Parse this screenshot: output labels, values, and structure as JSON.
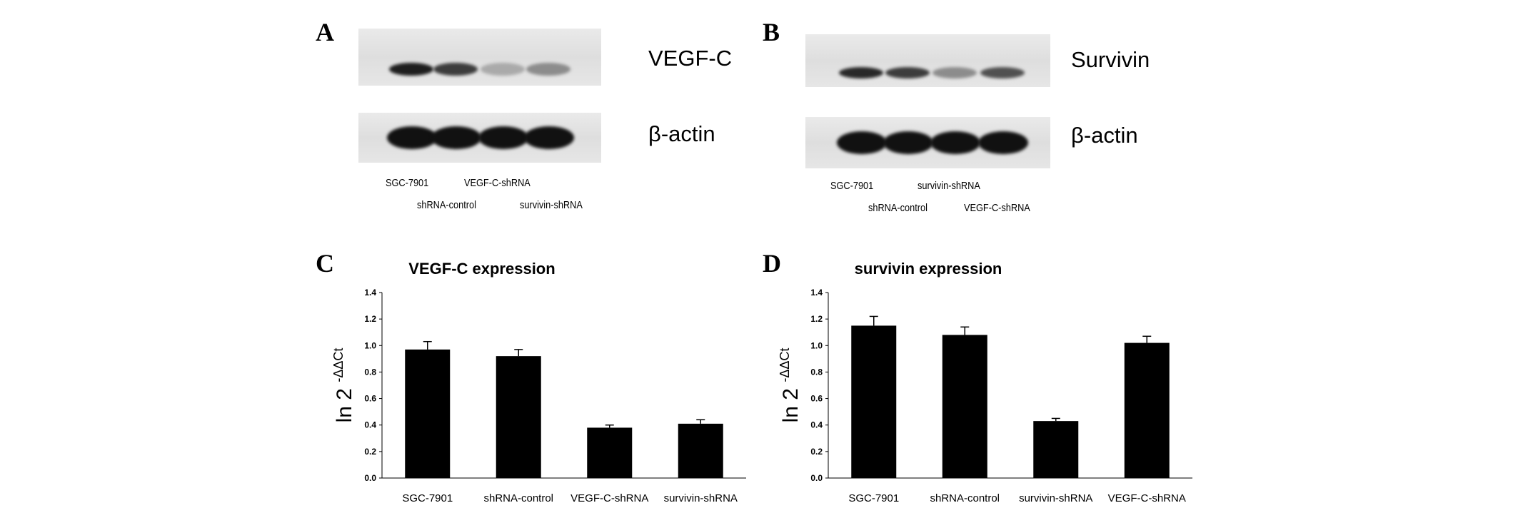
{
  "panels": {
    "A": {
      "letter": "A",
      "target_label": "VEGF-C",
      "loading_label": "β-actin",
      "lanes_row1": [
        "SGC-7901",
        "VEGF-C-shRNA"
      ],
      "lanes_row2": [
        "shRNA-control",
        "survivin-shRNA"
      ],
      "band_intensity": [
        1.0,
        0.85,
        0.3,
        0.45
      ]
    },
    "B": {
      "letter": "B",
      "target_label": "Survivin",
      "loading_label": "β-actin",
      "lanes_row1": [
        "SGC-7901",
        "survivin-shRNA"
      ],
      "lanes_row2": [
        "shRNA-control",
        "VEGF-C-shRNA"
      ],
      "band_intensity": [
        0.95,
        0.85,
        0.45,
        0.75
      ]
    },
    "C": {
      "letter": "C"
    },
    "D": {
      "letter": "D"
    }
  },
  "chart_data": [
    {
      "type": "bar",
      "title": "VEGF-C expression",
      "ylabel": "ln 2",
      "ylabel_superscript": "-ΔΔCt",
      "categories": [
        "SGC-7901",
        "shRNA-control",
        "VEGF-C-shRNA",
        "survivin-shRNA"
      ],
      "values": [
        0.97,
        0.92,
        0.38,
        0.41
      ],
      "errors": [
        0.06,
        0.05,
        0.02,
        0.03
      ],
      "ylim": [
        0,
        1.4
      ],
      "yticks": [
        "0.0",
        "0.2",
        "0.4",
        "0.6",
        "0.8",
        "1.0",
        "1.2",
        "1.4"
      ],
      "bar_color": "#000000"
    },
    {
      "type": "bar",
      "title": "survivin expression",
      "ylabel": "ln 2",
      "ylabel_superscript": "-ΔΔCt",
      "categories": [
        "SGC-7901",
        "shRNA-control",
        "survivin-shRNA",
        "VEGF-C-shRNA"
      ],
      "values": [
        1.15,
        1.08,
        0.43,
        1.02
      ],
      "errors": [
        0.07,
        0.06,
        0.02,
        0.05
      ],
      "ylim": [
        0,
        1.4
      ],
      "yticks": [
        "0.0",
        "0.2",
        "0.4",
        "0.6",
        "0.8",
        "1.0",
        "1.2",
        "1.4"
      ],
      "bar_color": "#000000"
    }
  ]
}
